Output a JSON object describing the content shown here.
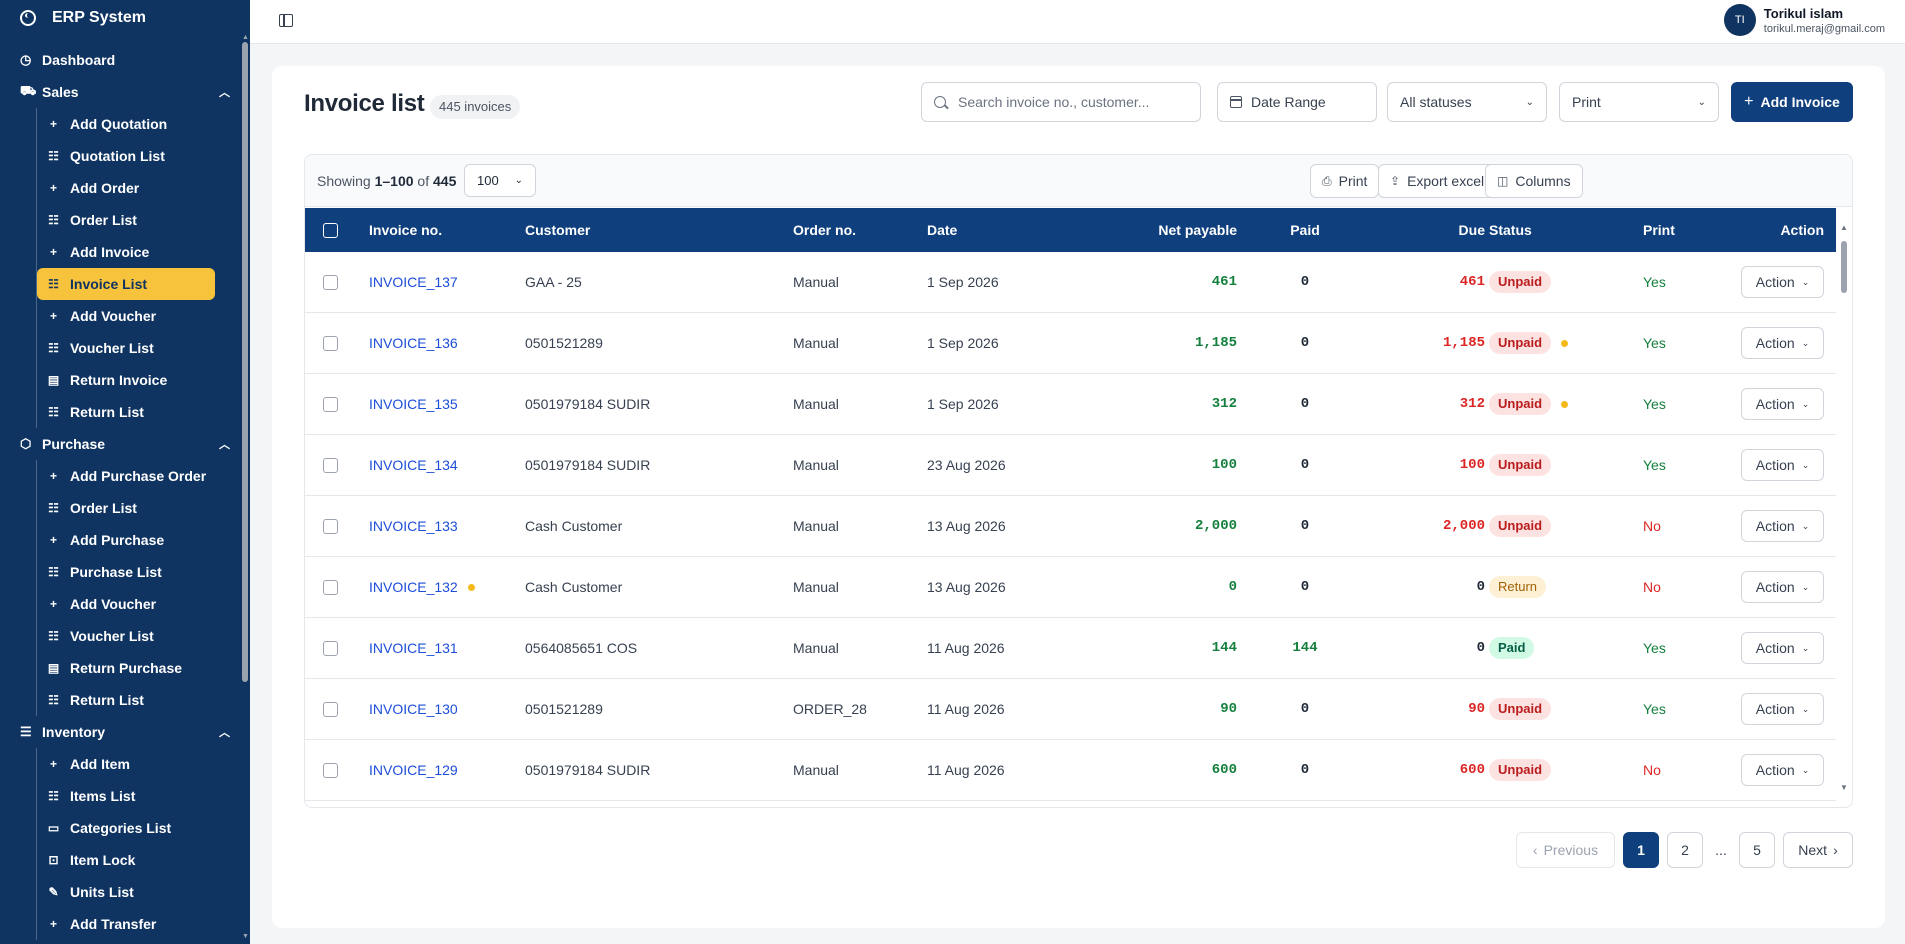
{
  "sidebar": {
    "brand": "ERP System",
    "items": [
      {
        "kind": "top",
        "icon": "dashboard-icon",
        "glyph": "◷",
        "label": "Dashboard"
      },
      {
        "kind": "group",
        "icon": "cart-icon",
        "glyph": "⛟",
        "label": "Sales",
        "children": [
          {
            "icon": "plus-icon",
            "glyph": "+",
            "label": "Add Quotation"
          },
          {
            "icon": "list-icon",
            "glyph": "☷",
            "label": "Quotation List"
          },
          {
            "icon": "plus-icon",
            "glyph": "+",
            "label": "Add Order"
          },
          {
            "icon": "list-icon",
            "glyph": "☷",
            "label": "Order List"
          },
          {
            "icon": "plus-icon",
            "glyph": "+",
            "label": "Add Invoice"
          },
          {
            "icon": "list-icon",
            "glyph": "☷",
            "label": "Invoice List",
            "active": true
          },
          {
            "icon": "plus-icon",
            "glyph": "+",
            "label": "Add Voucher"
          },
          {
            "icon": "list-icon",
            "glyph": "☷",
            "label": "Voucher List"
          },
          {
            "icon": "document-icon",
            "glyph": "▤",
            "label": "Return Invoice"
          },
          {
            "icon": "list-icon",
            "glyph": "☷",
            "label": "Return List"
          }
        ]
      },
      {
        "kind": "group",
        "icon": "box-icon",
        "glyph": "⬡",
        "label": "Purchase",
        "children": [
          {
            "icon": "plus-icon",
            "glyph": "+",
            "label": "Add Purchase Order"
          },
          {
            "icon": "list-icon",
            "glyph": "☷",
            "label": "Order List"
          },
          {
            "icon": "plus-icon",
            "glyph": "+",
            "label": "Add Purchase"
          },
          {
            "icon": "list-icon",
            "glyph": "☷",
            "label": "Purchase List"
          },
          {
            "icon": "plus-icon",
            "glyph": "+",
            "label": "Add Voucher"
          },
          {
            "icon": "list-icon",
            "glyph": "☷",
            "label": "Voucher List"
          },
          {
            "icon": "document-icon",
            "glyph": "▤",
            "label": "Return Purchase"
          },
          {
            "icon": "list-icon",
            "glyph": "☷",
            "label": "Return List"
          }
        ]
      },
      {
        "kind": "group",
        "icon": "database-icon",
        "glyph": "☰",
        "label": "Inventory",
        "children": [
          {
            "icon": "plus-icon",
            "glyph": "+",
            "label": "Add Item"
          },
          {
            "icon": "list-icon",
            "glyph": "☷",
            "label": "Items List"
          },
          {
            "icon": "folder-icon",
            "glyph": "▭",
            "label": "Categories List"
          },
          {
            "icon": "lock-icon",
            "glyph": "⊡",
            "label": "Item Lock"
          },
          {
            "icon": "pencil-icon",
            "glyph": "✎",
            "label": "Units List"
          },
          {
            "icon": "plus-icon",
            "glyph": "+",
            "label": "Add Transfer"
          }
        ]
      }
    ]
  },
  "header": {
    "user_initials": "TI",
    "user_name": "Torikul islam",
    "user_email": "torikul.meraj@gmail.com"
  },
  "page": {
    "title": "Invoice list",
    "count_label": "445 invoices",
    "search_placeholder": "Search invoice no., customer...",
    "date_range_label": "Date Range",
    "status_filter": "All statuses",
    "print_select": "Print",
    "add_button": "Add Invoice"
  },
  "table_toolbar": {
    "showing_prefix": "Showing",
    "showing_range": "1–100",
    "showing_of": "of",
    "showing_total": "445",
    "page_size": "100",
    "print_label": "Print",
    "export_label": "Export excel",
    "columns_label": "Columns"
  },
  "table": {
    "headers": [
      "Invoice no.",
      "Customer",
      "Order no.",
      "Date",
      "Net payable",
      "Paid",
      "Due",
      "Status",
      "Print",
      "Action"
    ],
    "rows": [
      {
        "invoice": "INVOICE_137",
        "inv_dot": false,
        "customer": "GAA - 25",
        "order": "Manual",
        "date": "1 Sep 2026",
        "net": "461",
        "paid": "0",
        "due": "461",
        "status": "Unpaid",
        "status_dot": false,
        "print": "Yes",
        "action": "Action"
      },
      {
        "invoice": "INVOICE_136",
        "inv_dot": false,
        "customer": "0501521289",
        "order": "Manual",
        "date": "1 Sep 2026",
        "net": "1,185",
        "paid": "0",
        "due": "1,185",
        "status": "Unpaid",
        "status_dot": true,
        "print": "Yes",
        "action": "Action"
      },
      {
        "invoice": "INVOICE_135",
        "inv_dot": false,
        "customer": "0501979184 SUDIR",
        "order": "Manual",
        "date": "1 Sep 2026",
        "net": "312",
        "paid": "0",
        "due": "312",
        "status": "Unpaid",
        "status_dot": true,
        "print": "Yes",
        "action": "Action"
      },
      {
        "invoice": "INVOICE_134",
        "inv_dot": false,
        "customer": "0501979184 SUDIR",
        "order": "Manual",
        "date": "23 Aug 2026",
        "net": "100",
        "paid": "0",
        "due": "100",
        "status": "Unpaid",
        "status_dot": false,
        "print": "Yes",
        "action": "Action"
      },
      {
        "invoice": "INVOICE_133",
        "inv_dot": false,
        "customer": "Cash Customer",
        "order": "Manual",
        "date": "13 Aug 2026",
        "net": "2,000",
        "paid": "0",
        "due": "2,000",
        "status": "Unpaid",
        "status_dot": false,
        "print": "No",
        "action": "Action"
      },
      {
        "invoice": "INVOICE_132",
        "inv_dot": true,
        "customer": "Cash Customer",
        "order": "Manual",
        "date": "13 Aug 2026",
        "net": "0",
        "paid": "0",
        "due": "0",
        "status": "Return",
        "status_dot": false,
        "print": "No",
        "action": "Action"
      },
      {
        "invoice": "INVOICE_131",
        "inv_dot": false,
        "customer": "0564085651 COS",
        "order": "Manual",
        "date": "11 Aug 2026",
        "net": "144",
        "paid": "144",
        "due": "0",
        "status": "Paid",
        "status_dot": false,
        "print": "Yes",
        "action": "Action"
      },
      {
        "invoice": "INVOICE_130",
        "inv_dot": false,
        "customer": "0501521289",
        "order": "ORDER_28",
        "date": "11 Aug 2026",
        "net": "90",
        "paid": "0",
        "due": "90",
        "status": "Unpaid",
        "status_dot": false,
        "print": "Yes",
        "action": "Action"
      },
      {
        "invoice": "INVOICE_129",
        "inv_dot": false,
        "customer": "0501979184 SUDIR",
        "order": "Manual",
        "date": "11 Aug 2026",
        "net": "600",
        "paid": "0",
        "due": "600",
        "status": "Unpaid",
        "status_dot": false,
        "print": "No",
        "action": "Action"
      }
    ]
  },
  "pagination": {
    "previous": "Previous",
    "pages": [
      "1",
      "2",
      "...",
      "5"
    ],
    "current": "1",
    "next": "Next"
  },
  "colors": {
    "sidebar_bg": "#0f3461",
    "primary": "#0f3f7d",
    "active_item": "#f8c33c",
    "positive": "#15803d",
    "negative": "#dc2626"
  }
}
